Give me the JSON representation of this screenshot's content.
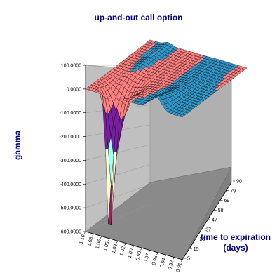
{
  "chart_data": {
    "type": "surface",
    "title": "up-and-out call option",
    "zlabel": "gamma",
    "ylabel_line1": "time to expiration",
    "ylabel_line2": "(days)",
    "xlabel": "",
    "zlim": [
      -600,
      100
    ],
    "z_ticks": [
      "100.0000",
      "0.0000",
      "-100.0000",
      "-200.0000",
      "-300.0000",
      "-400.0000",
      "-500.0000",
      "-600.0000"
    ],
    "x_ticks": [
      "1.10",
      "1.08",
      "1.06",
      "1.05",
      "1.03",
      "1.02",
      "1.00",
      "0.99",
      "0.97",
      "0.95",
      "0.94",
      "0.92",
      "0.91"
    ],
    "y_ticks": [
      "5",
      "15",
      "26",
      "37",
      "47",
      "58",
      "69",
      "79",
      "90"
    ],
    "minimum_gamma": -600,
    "minimum_at": {
      "spot": 1.05,
      "days": 5
    },
    "grid": true,
    "legend": "none",
    "colors": {
      "wall": "#c0c0c0",
      "floor": "#808080",
      "label": "#000080",
      "band_pos_high": "#00b0f0",
      "band_0": "#3399cc",
      "band_m100": "#ff8080",
      "band_m200": "#7a1fa2",
      "band_m300": "#99ffff",
      "band_m400": "#ffffcc",
      "band_m500": "#9c1f60",
      "band_m600": "#5b6fe8"
    }
  }
}
